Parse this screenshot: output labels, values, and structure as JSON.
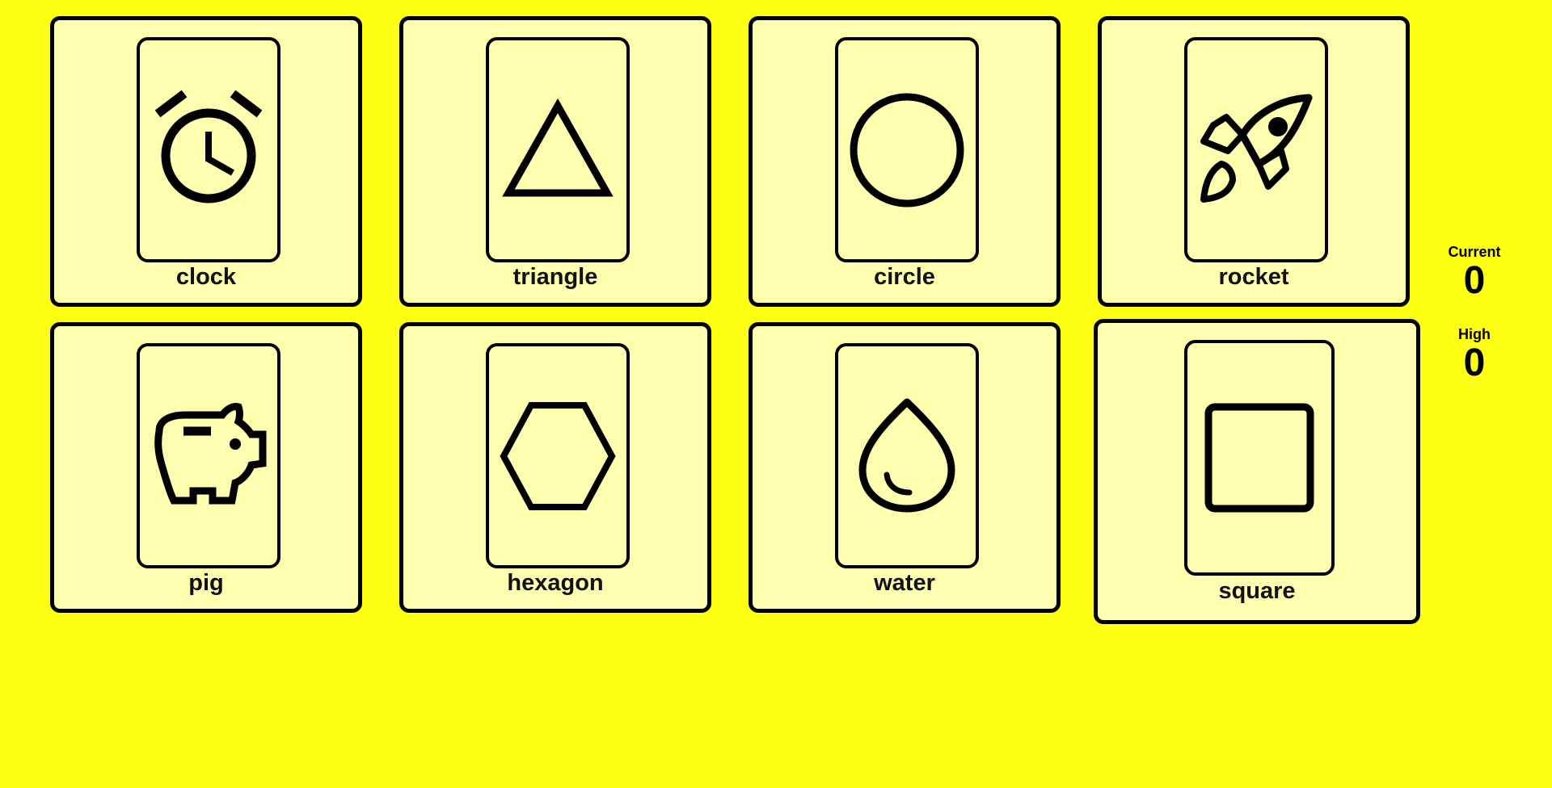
{
  "cards": [
    {
      "label": "clock",
      "icon": "alarm-clock-icon"
    },
    {
      "label": "triangle",
      "icon": "triangle-icon"
    },
    {
      "label": "circle",
      "icon": "circle-icon"
    },
    {
      "label": "rocket",
      "icon": "rocket-icon"
    },
    {
      "label": "pig",
      "icon": "piggy-bank-icon"
    },
    {
      "label": "hexagon",
      "icon": "hexagon-icon"
    },
    {
      "label": "water",
      "icon": "water-drop-icon"
    },
    {
      "label": "square",
      "icon": "square-icon"
    }
  ],
  "score": {
    "current_label": "Current",
    "current_value": "0",
    "high_label": "High",
    "high_value": "0"
  },
  "colors": {
    "background": "#ffff14",
    "card": "#ffffb0",
    "stroke": "#000000"
  }
}
